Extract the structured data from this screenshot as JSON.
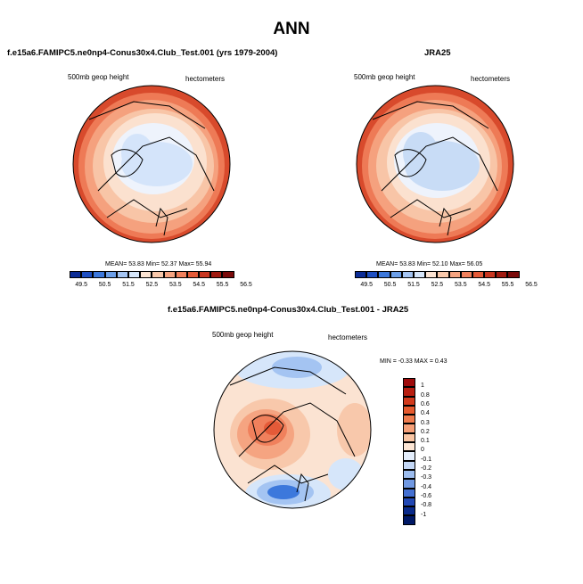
{
  "title": "ANN",
  "panels": [
    {
      "title": "f.e15a6.FAMIPC5.ne0np4-Conus30x4.Club_Test.001 (yrs 1979-2004)",
      "field_label": "500mb geop height",
      "units": "hectometers",
      "stats": "MEAN=  53.83  Min=  52.37  Max=  55.94",
      "colorbar_labels": [
        "49.5",
        "50.5",
        "51.5",
        "52.5",
        "53.5",
        "54.5",
        "55.5",
        "56.5"
      ]
    },
    {
      "title": "JRA25",
      "field_label": "500mb geop height",
      "units": "hectometers",
      "stats": "MEAN=  53.83  Min=  52.10  Max=  56.05",
      "colorbar_labels": [
        "49.5",
        "50.5",
        "51.5",
        "52.5",
        "53.5",
        "54.5",
        "55.5",
        "56.5"
      ]
    },
    {
      "title": "f.e15a6.FAMIPC5.ne0np4-Conus30x4.Club_Test.001 - JRA25",
      "field_label": "500mb geop height",
      "units": "hectometers",
      "stats": "MIN = -0.33 MAX =  0.43",
      "colorbar_labels": [
        "1",
        "0.8",
        "0.6",
        "0.4",
        "0.3",
        "0.2",
        "0.1",
        "0",
        "-0.1",
        "-0.2",
        "-0.3",
        "-0.4",
        "-0.6",
        "-0.8",
        "-1"
      ]
    }
  ],
  "colors": {
    "abs_scale": [
      "#0b2c96",
      "#1e4fc2",
      "#3c78dc",
      "#6c9fe8",
      "#a4c4f2",
      "#d6e6fa",
      "#fbe3d2",
      "#f8c8ab",
      "#f5a481",
      "#f0805c",
      "#e45a38",
      "#c83620",
      "#a01a10",
      "#7a0a0a"
    ],
    "diff_scale": [
      "#9e0b0b",
      "#b81e10",
      "#d23a1c",
      "#e65a2e",
      "#f07c4e",
      "#f6a078",
      "#fac6a4",
      "#fde6d4",
      "#e4eefc",
      "#c4d8f6",
      "#9cbcee",
      "#7098e2",
      "#4470d2",
      "#2248b4",
      "#0a2a8a",
      "#001866"
    ]
  }
}
